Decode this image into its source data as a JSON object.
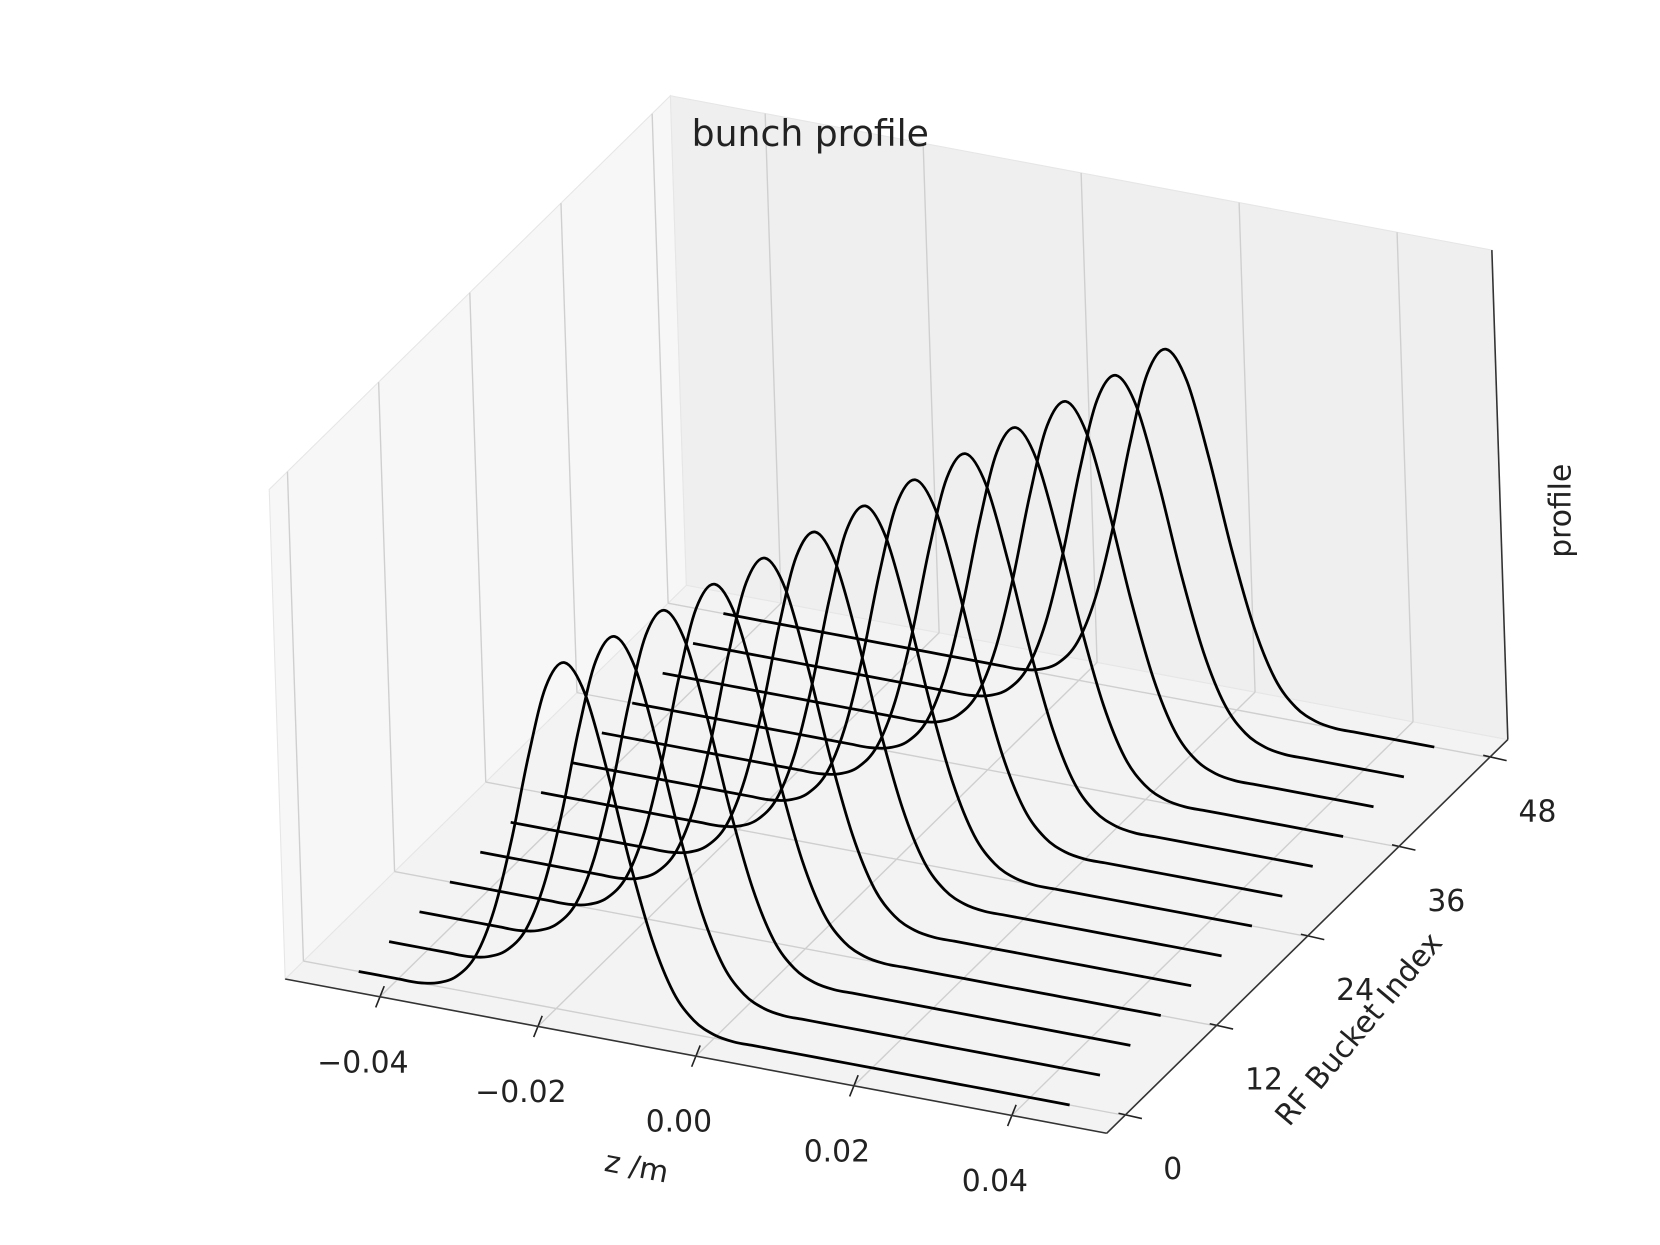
{
  "chart_data": {
    "type": "line3d",
    "title": "bunch profile",
    "xlabel": "z /m",
    "ylabel": "RF Bucket Index",
    "zlabel": "profile",
    "color": "#000000",
    "grid": true,
    "xlim": [
      -0.052,
      0.052
    ],
    "xticks": [
      {
        "value": -0.04,
        "label": "−0.04"
      },
      {
        "value": -0.02,
        "label": "−0.02"
      },
      {
        "value": 0,
        "label": "0.00"
      },
      0.02,
      0.04
    ],
    "ylim": [
      -2.4,
      50.4
    ],
    "yticks": [
      0,
      12,
      24,
      36,
      48
    ],
    "zlim": [
      0,
      1.4
    ],
    "x": [
      -0.045,
      -0.0425,
      -0.04,
      -0.0375,
      -0.035,
      -0.0325,
      -0.03,
      -0.0275,
      -0.025,
      -0.0225,
      -0.02,
      -0.0175,
      -0.015,
      -0.0125,
      -0.01,
      -0.0075,
      -0.005,
      -0.0025,
      0,
      0.0025,
      0.005,
      0.0075,
      0.01,
      0.0125,
      0.015,
      0.0175,
      0.02,
      0.0225,
      0.025,
      0.0275,
      0.03,
      0.0325,
      0.035,
      0.0375,
      0.04,
      0.0425,
      0.045
    ],
    "series": [
      {
        "y": 0,
        "values": [
          0,
          0,
          0,
          0,
          0.01,
          0.04,
          0.11,
          0.25,
          0.46,
          0.71,
          0.92,
          1,
          0.92,
          0.71,
          0.46,
          0.25,
          0.11,
          0.04,
          0.01,
          0,
          0,
          0,
          0,
          0,
          0,
          0,
          0,
          0,
          0,
          0,
          0,
          0,
          0,
          0,
          0,
          0,
          0
        ]
      },
      {
        "y": 4,
        "values": [
          0,
          0,
          0,
          0,
          0,
          0.01,
          0.04,
          0.11,
          0.25,
          0.46,
          0.71,
          0.92,
          1,
          0.92,
          0.71,
          0.46,
          0.25,
          0.11,
          0.04,
          0.01,
          0,
          0,
          0,
          0,
          0,
          0,
          0,
          0,
          0,
          0,
          0,
          0,
          0,
          0,
          0,
          0,
          0
        ]
      },
      {
        "y": 8,
        "values": [
          0,
          0,
          0,
          0,
          0,
          0,
          0.01,
          0.04,
          0.11,
          0.25,
          0.46,
          0.71,
          0.92,
          1,
          0.92,
          0.71,
          0.46,
          0.25,
          0.11,
          0.04,
          0.01,
          0,
          0,
          0,
          0,
          0,
          0,
          0,
          0,
          0,
          0,
          0,
          0,
          0,
          0,
          0,
          0
        ]
      },
      {
        "y": 12,
        "values": [
          0,
          0,
          0,
          0,
          0,
          0,
          0,
          0.01,
          0.04,
          0.11,
          0.25,
          0.46,
          0.71,
          0.92,
          1,
          0.92,
          0.71,
          0.46,
          0.25,
          0.11,
          0.04,
          0.01,
          0,
          0,
          0,
          0,
          0,
          0,
          0,
          0,
          0,
          0,
          0,
          0,
          0,
          0,
          0
        ]
      },
      {
        "y": 16,
        "values": [
          0,
          0,
          0,
          0,
          0,
          0,
          0,
          0,
          0.01,
          0.04,
          0.11,
          0.25,
          0.46,
          0.71,
          0.92,
          1,
          0.92,
          0.71,
          0.46,
          0.25,
          0.11,
          0.04,
          0.01,
          0,
          0,
          0,
          0,
          0,
          0,
          0,
          0,
          0,
          0,
          0,
          0,
          0,
          0
        ]
      },
      {
        "y": 20,
        "values": [
          0,
          0,
          0,
          0,
          0,
          0,
          0,
          0,
          0,
          0.01,
          0.04,
          0.11,
          0.25,
          0.46,
          0.71,
          0.92,
          1,
          0.92,
          0.71,
          0.46,
          0.25,
          0.11,
          0.04,
          0.01,
          0,
          0,
          0,
          0,
          0,
          0,
          0,
          0,
          0,
          0,
          0,
          0,
          0
        ]
      },
      {
        "y": 24,
        "values": [
          0,
          0,
          0,
          0,
          0,
          0,
          0,
          0,
          0,
          0,
          0.01,
          0.04,
          0.11,
          0.25,
          0.46,
          0.71,
          0.92,
          1,
          0.92,
          0.71,
          0.46,
          0.25,
          0.11,
          0.04,
          0.01,
          0,
          0,
          0,
          0,
          0,
          0,
          0,
          0,
          0,
          0,
          0,
          0
        ]
      },
      {
        "y": 28,
        "values": [
          0,
          0,
          0,
          0,
          0,
          0,
          0,
          0,
          0,
          0,
          0,
          0.01,
          0.04,
          0.11,
          0.25,
          0.46,
          0.71,
          0.92,
          1,
          0.92,
          0.71,
          0.46,
          0.25,
          0.11,
          0.04,
          0.01,
          0,
          0,
          0,
          0,
          0,
          0,
          0,
          0,
          0,
          0,
          0
        ]
      },
      {
        "y": 32,
        "values": [
          0,
          0,
          0,
          0,
          0,
          0,
          0,
          0,
          0,
          0,
          0,
          0,
          0.01,
          0.04,
          0.11,
          0.25,
          0.46,
          0.71,
          0.92,
          1,
          0.92,
          0.71,
          0.46,
          0.25,
          0.11,
          0.04,
          0.01,
          0,
          0,
          0,
          0,
          0,
          0,
          0,
          0,
          0,
          0
        ]
      },
      {
        "y": 36,
        "values": [
          0,
          0,
          0,
          0,
          0,
          0,
          0,
          0,
          0,
          0,
          0,
          0,
          0,
          0.01,
          0.04,
          0.11,
          0.25,
          0.46,
          0.71,
          0.92,
          1,
          0.92,
          0.71,
          0.46,
          0.25,
          0.11,
          0.04,
          0.01,
          0,
          0,
          0,
          0,
          0,
          0,
          0,
          0,
          0
        ]
      },
      {
        "y": 40,
        "values": [
          0,
          0,
          0,
          0,
          0,
          0,
          0,
          0,
          0,
          0,
          0,
          0,
          0,
          0,
          0.01,
          0.04,
          0.11,
          0.25,
          0.46,
          0.71,
          0.92,
          1,
          0.92,
          0.71,
          0.46,
          0.25,
          0.11,
          0.04,
          0.01,
          0,
          0,
          0,
          0,
          0,
          0,
          0,
          0
        ]
      },
      {
        "y": 44,
        "values": [
          0,
          0,
          0,
          0,
          0,
          0,
          0,
          0,
          0,
          0,
          0,
          0,
          0,
          0,
          0,
          0.01,
          0.04,
          0.11,
          0.25,
          0.46,
          0.71,
          0.92,
          1,
          0.92,
          0.71,
          0.46,
          0.25,
          0.11,
          0.04,
          0.01,
          0,
          0,
          0,
          0,
          0,
          0,
          0
        ]
      },
      {
        "y": 48,
        "values": [
          0,
          0,
          0,
          0,
          0,
          0,
          0,
          0,
          0,
          0,
          0,
          0,
          0,
          0,
          0,
          0,
          0.01,
          0.04,
          0.11,
          0.25,
          0.46,
          0.71,
          0.92,
          1,
          0.92,
          0.71,
          0.46,
          0.25,
          0.11,
          0.04,
          0.01,
          0,
          0,
          0,
          0,
          0,
          0
        ]
      }
    ]
  }
}
